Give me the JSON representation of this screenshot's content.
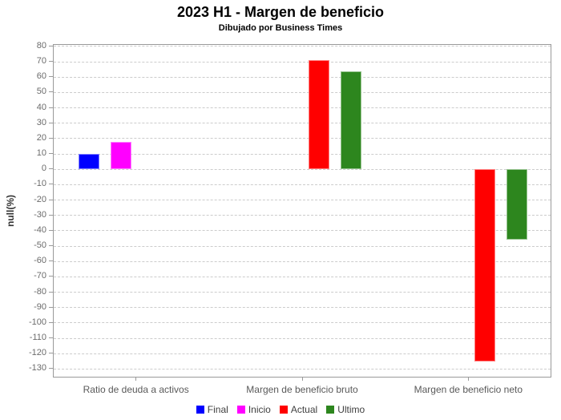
{
  "chart_data": {
    "type": "bar",
    "title": "2023 H1 - Margen de beneficio",
    "subtitle": "Dibujado por Business Times",
    "ylabel": "null(%)",
    "xlabel": "",
    "categories": [
      "Ratio de deuda a activos",
      "Margen de beneficio bruto",
      "Margen de beneficio neto"
    ],
    "series": [
      {
        "name": "Final",
        "color": "#0000ff",
        "values": [
          10,
          null,
          null
        ]
      },
      {
        "name": "Inicio",
        "color": "#ff00ff",
        "values": [
          18,
          null,
          null
        ]
      },
      {
        "name": "Actual",
        "color": "#ff0000",
        "values": [
          null,
          71,
          -125
        ]
      },
      {
        "name": "Ultimo",
        "color": "#2d861e",
        "values": [
          null,
          64,
          -46
        ]
      }
    ],
    "ylim": [
      -130,
      80
    ],
    "ytick_step": 10,
    "yticks": [
      80,
      70,
      60,
      50,
      40,
      30,
      20,
      10,
      0,
      -10,
      -20,
      -30,
      -40,
      -50,
      -60,
      -70,
      -80,
      -90,
      -100,
      -110,
      -120,
      -130
    ],
    "grid": "horizontal-dashed",
    "legend_position": "bottom",
    "colors": {
      "grid": "#cccccc",
      "axis": "#9a9a9a",
      "tick_label": "#6b6b6b",
      "category_label": "#595959",
      "legend_label": "#3f3f3f",
      "title": "#000000",
      "background": "#ffffff"
    }
  }
}
